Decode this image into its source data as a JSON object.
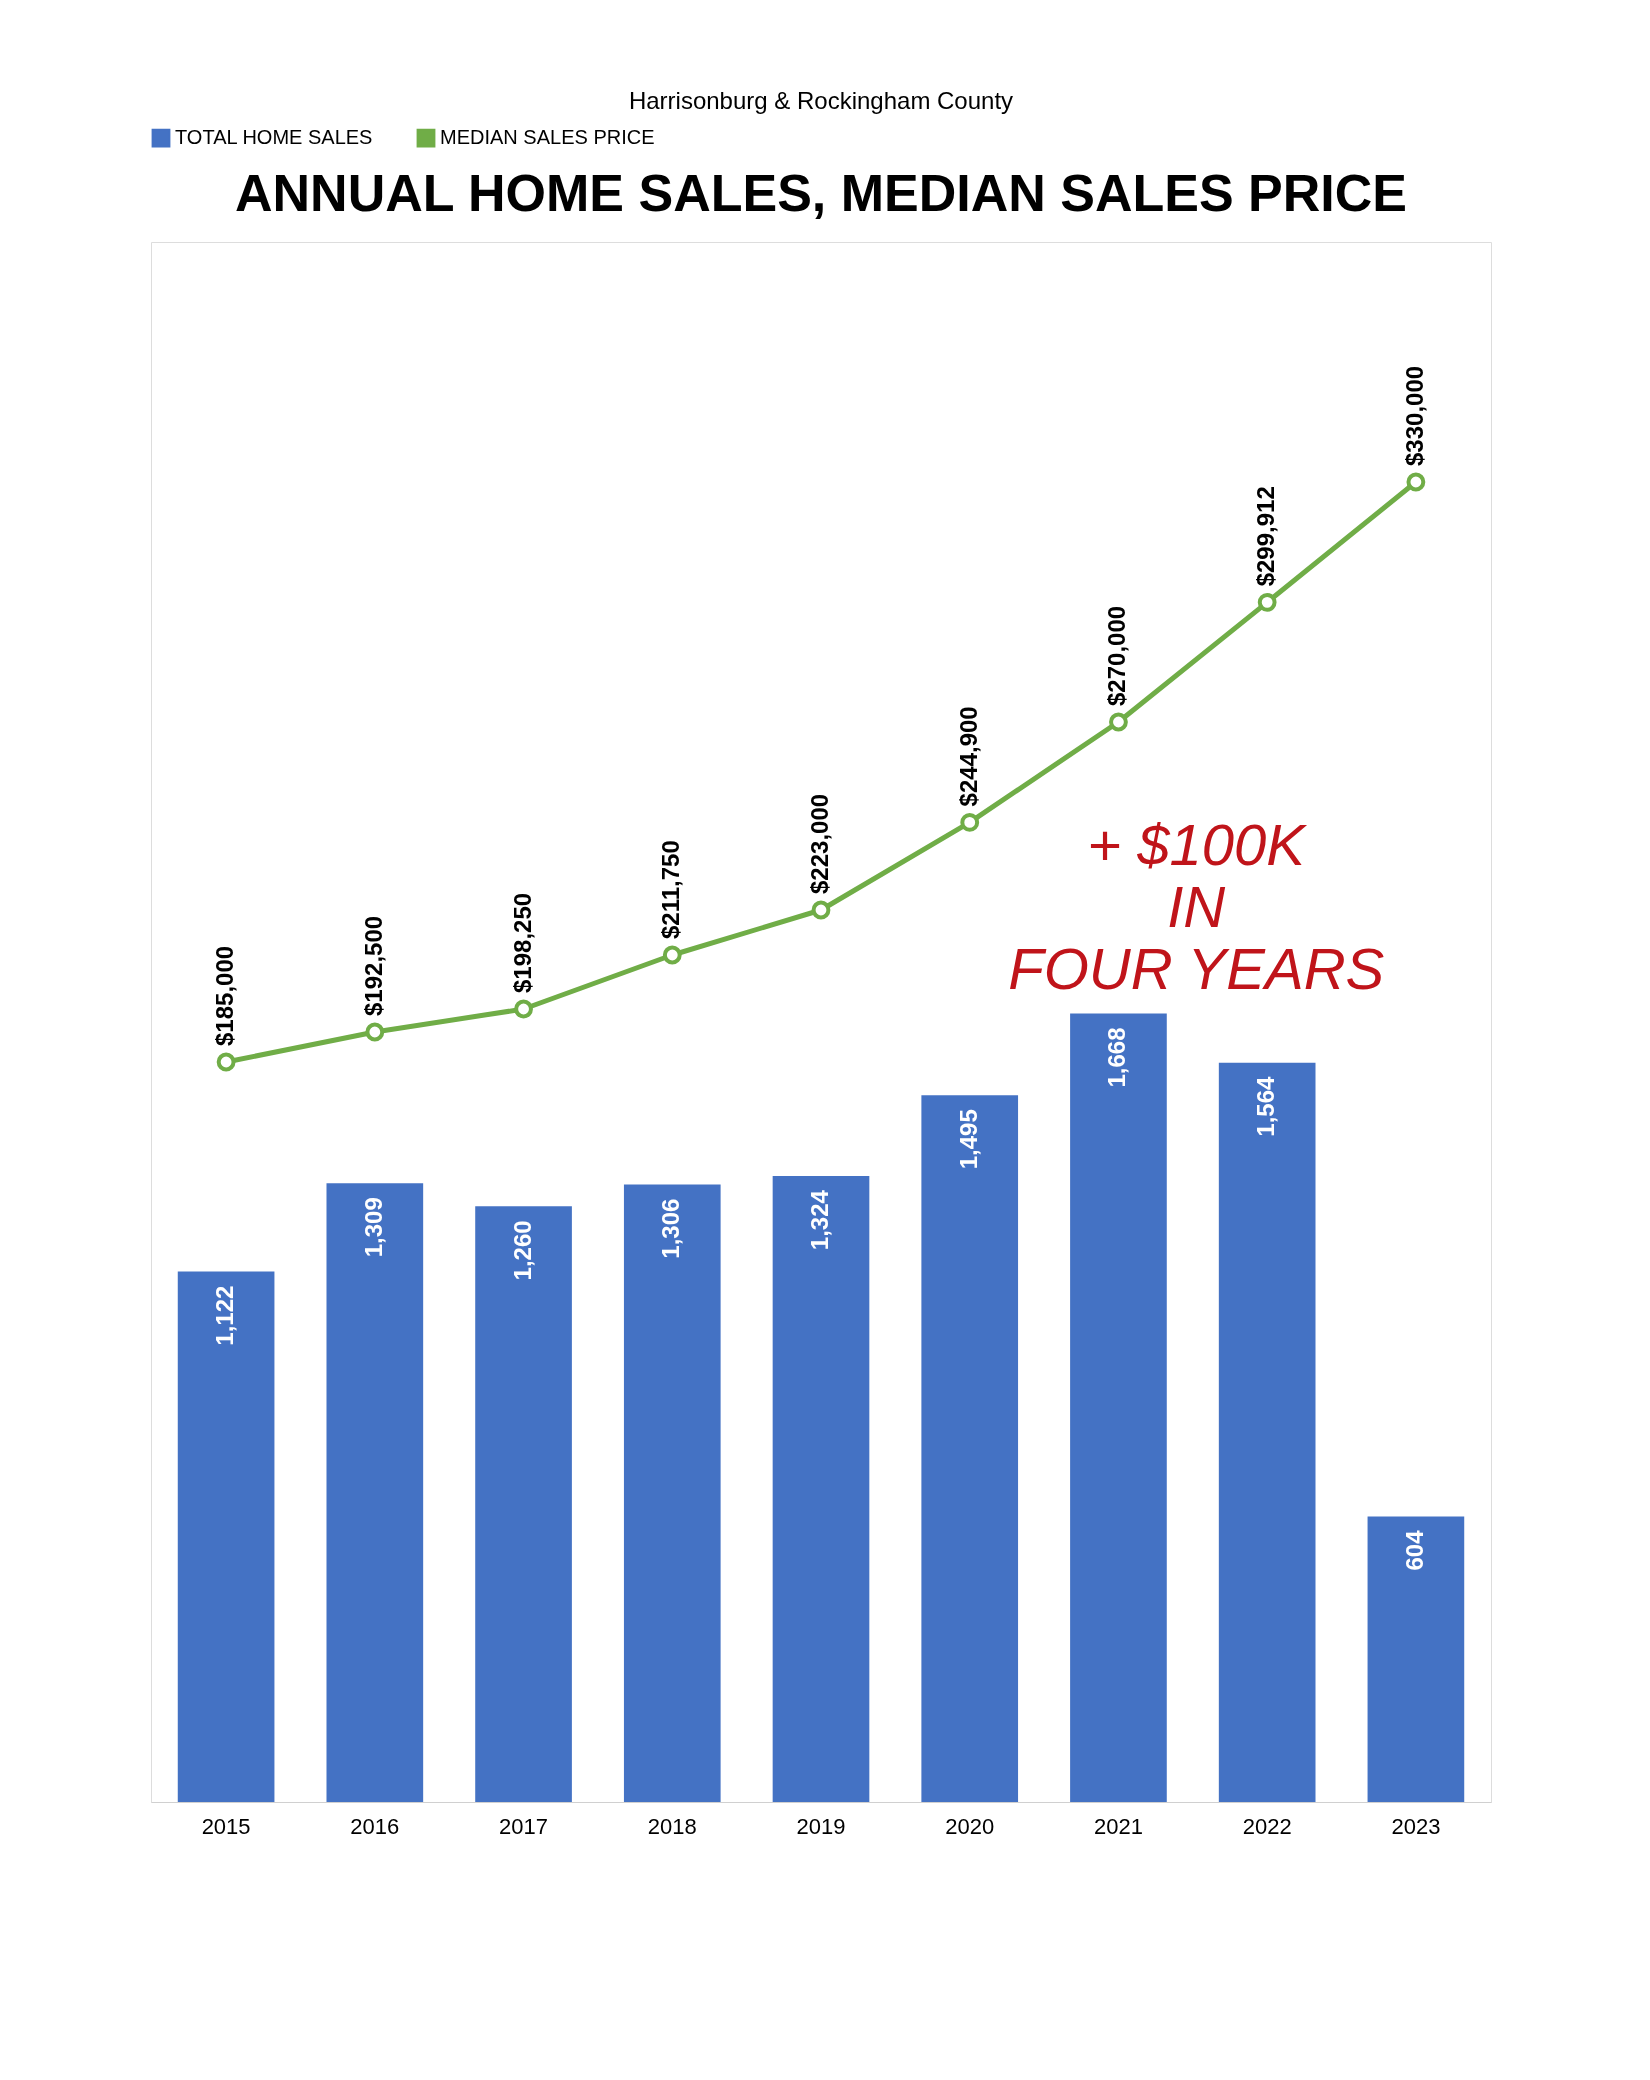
{
  "chart_data": {
    "type": "bar",
    "subtitle": "Harrisonburg & Rockingham County",
    "title": "ANNUAL HOME SALES, MEDIAN SALES PRICE",
    "categories": [
      "2015",
      "2016",
      "2017",
      "2018",
      "2019",
      "2020",
      "2021",
      "2022",
      "2023"
    ],
    "series": [
      {
        "name": "TOTAL HOME SALES",
        "color": "#4472c4",
        "values": [
          1122,
          1309,
          1260,
          1306,
          1324,
          1495,
          1668,
          1564,
          604
        ],
        "value_labels": [
          "1,122",
          "1,309",
          "1,260",
          "1,306",
          "1,324",
          "1,495",
          "1,668",
          "1,564",
          "604"
        ]
      },
      {
        "name": "MEDIAN SALES PRICE",
        "type": "line",
        "axis": "y2",
        "color": "#70ad47",
        "marker": "circle",
        "values": [
          185000,
          192500,
          198250,
          211750,
          223000,
          244900,
          270000,
          299912,
          330000
        ],
        "value_labels": [
          "$185,000",
          "$192,500",
          "$198,250",
          "$211,750",
          "$223,000",
          "$244,900",
          "$270,000",
          "$299,912",
          "$330,000"
        ]
      }
    ],
    "annotations": [
      "+ $100K\nIN\nFOUR YEARS"
    ],
    "ylim": [
      0,
      3300
    ],
    "y2lim": [
      0,
      390000
    ],
    "tick_labels": "x",
    "legend": "top"
  }
}
